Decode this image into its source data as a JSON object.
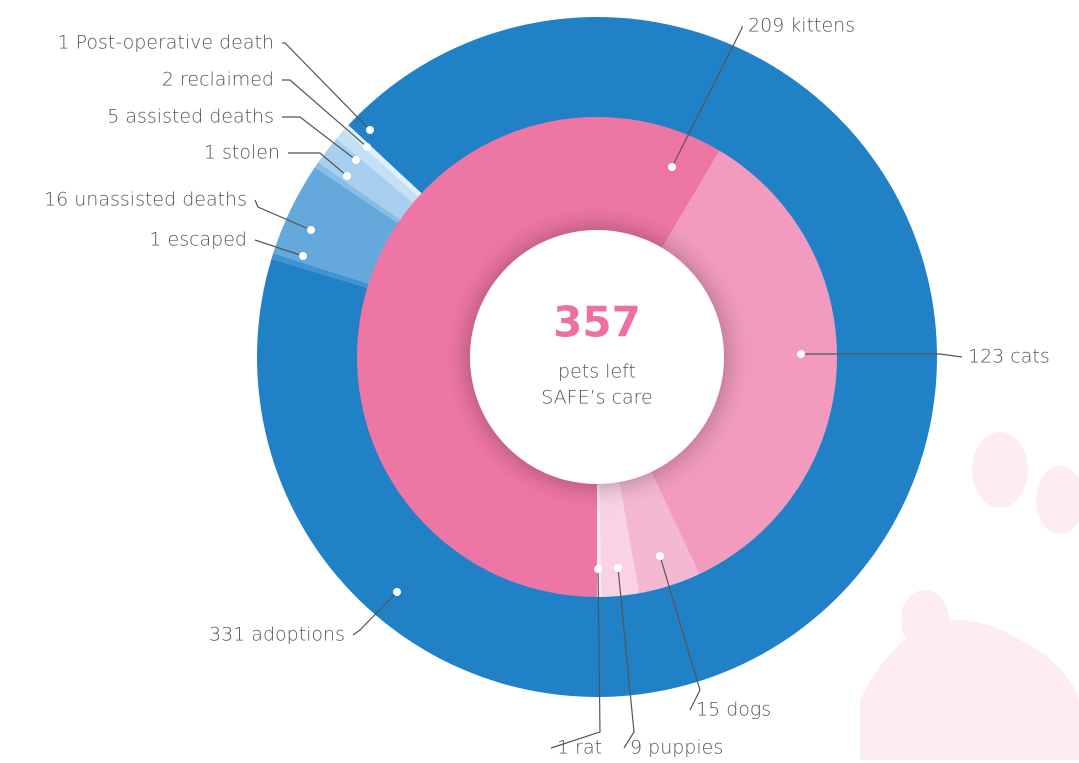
{
  "chart_data": {
    "type": "sunburst",
    "center_value": 357,
    "center_label": [
      "pets left",
      "SAFE’s care"
    ],
    "center_color": "#ee6fa2",
    "series": [
      {
        "values": [
          331,
          1,
          16,
          1,
          5,
          2,
          1
        ],
        "value_labels": [
          "331 adoptions",
          "1 escaped",
          "16 unassisted deaths",
          "1 stolen",
          "5 assisted deaths",
          "2 reclaimed",
          "1 Post-operative death"
        ],
        "colors": [
          "#2181c7",
          "#3f93d2",
          "#64a8dc",
          "#88bde5",
          "#a7cfee",
          "#c4e0f4",
          "#e0eff9"
        ]
      },
      {
        "values": [
          209,
          123,
          15,
          9,
          1
        ],
        "value_labels": [
          "209 kittens",
          "123 cats",
          "15 dogs",
          "9 puppies",
          "1 rat"
        ],
        "colors": [
          "#ee76a5",
          "#f29bbf",
          "#f5b8d3",
          "#f9d3e3",
          "#fce8f0"
        ]
      }
    ]
  }
}
